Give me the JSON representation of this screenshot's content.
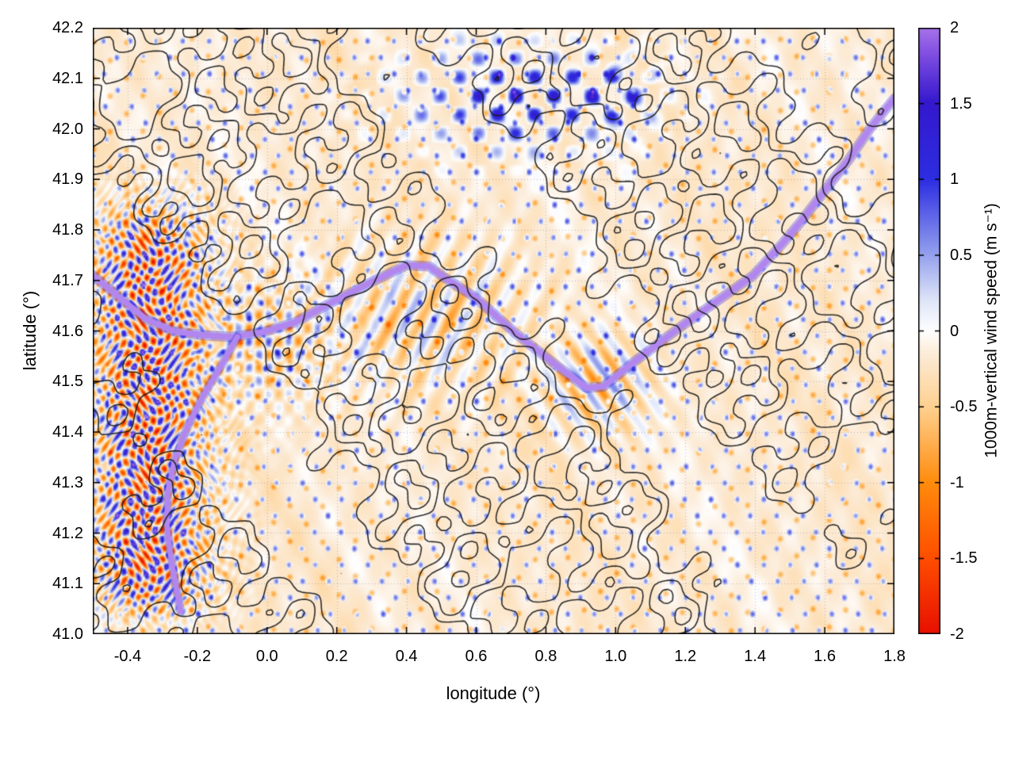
{
  "chart_data": {
    "type": "heatmap",
    "title": "",
    "xlabel": "longitude (°)",
    "ylabel": "latitude (°)",
    "xlim": [
      -0.5,
      1.8
    ],
    "ylim": [
      41.0,
      42.2
    ],
    "grid": true,
    "xticks": [
      {
        "v": -0.4,
        "label": "-0.4"
      },
      {
        "v": -0.2,
        "label": "-0.2"
      },
      {
        "v": 0.0,
        "label": "0.0"
      },
      {
        "v": 0.2,
        "label": "0.2"
      },
      {
        "v": 0.4,
        "label": "0.4"
      },
      {
        "v": 0.6,
        "label": "0.6"
      },
      {
        "v": 0.8,
        "label": "0.8"
      },
      {
        "v": 1.0,
        "label": "1.0"
      },
      {
        "v": 1.2,
        "label": "1.2"
      },
      {
        "v": 1.4,
        "label": "1.4"
      },
      {
        "v": 1.6,
        "label": "1.6"
      },
      {
        "v": 1.8,
        "label": "1.8"
      }
    ],
    "yticks": [
      {
        "v": 41.0,
        "label": "41.0"
      },
      {
        "v": 41.1,
        "label": "41.1"
      },
      {
        "v": 41.2,
        "label": "41.2"
      },
      {
        "v": 41.3,
        "label": "41.3"
      },
      {
        "v": 41.4,
        "label": "41.4"
      },
      {
        "v": 41.5,
        "label": "41.5"
      },
      {
        "v": 41.6,
        "label": "41.6"
      },
      {
        "v": 41.7,
        "label": "41.7"
      },
      {
        "v": 41.8,
        "label": "41.8"
      },
      {
        "v": 41.9,
        "label": "41.9"
      },
      {
        "v": 42.0,
        "label": "42.0"
      },
      {
        "v": 42.1,
        "label": "42.1"
      },
      {
        "v": 42.2,
        "label": "42.2"
      }
    ],
    "colorbar": {
      "label": "1000m-vertical wind speed (m s⁻¹)",
      "range": [
        -2,
        2
      ],
      "ticks": [
        {
          "v": -2,
          "label": "-2"
        },
        {
          "v": -1.5,
          "label": "-1.5"
        },
        {
          "v": -1,
          "label": "-1"
        },
        {
          "v": -0.5,
          "label": "-0.5"
        },
        {
          "v": 0,
          "label": "0"
        },
        {
          "v": 0.5,
          "label": "0.5"
        },
        {
          "v": 1,
          "label": "1"
        },
        {
          "v": 1.5,
          "label": "1.5"
        },
        {
          "v": 2,
          "label": "2"
        }
      ],
      "colormap": [
        {
          "v": -2.0,
          "c": "#e81000"
        },
        {
          "v": -1.5,
          "c": "#ff4e00"
        },
        {
          "v": -1.0,
          "c": "#ff8c0c"
        },
        {
          "v": -0.5,
          "c": "#ffd190"
        },
        {
          "v": -0.15,
          "c": "#fcecd8"
        },
        {
          "v": 0.0,
          "c": "#ffffff"
        },
        {
          "v": 0.2,
          "c": "#dfe6f8"
        },
        {
          "v": 0.5,
          "c": "#96a2ee"
        },
        {
          "v": 1.0,
          "c": "#2d2ee2"
        },
        {
          "v": 1.5,
          "c": "#3418cd"
        },
        {
          "v": 1.8,
          "c": "#7a4ae0"
        },
        {
          "v": 2.0,
          "c": "#a873ea"
        }
      ]
    },
    "overlays": {
      "flight_track": {
        "description": "thick light-purple line (w ≈ +2 m s⁻¹) of measurements along a flight track crossing the domain",
        "core_color": "#b286ef",
        "fringe_color": "#4338e0",
        "main": [
          [
            -0.5,
            41.71
          ],
          [
            -0.43,
            41.67
          ],
          [
            -0.35,
            41.625
          ],
          [
            -0.27,
            41.6
          ],
          [
            -0.19,
            41.592
          ],
          [
            -0.1,
            41.588
          ],
          [
            -0.01,
            41.598
          ],
          [
            0.08,
            41.617
          ],
          [
            0.19,
            41.658
          ],
          [
            0.3,
            41.697
          ],
          [
            0.4,
            41.73
          ],
          [
            0.465,
            41.728
          ],
          [
            0.51,
            41.705
          ],
          [
            0.6,
            41.665
          ],
          [
            0.71,
            41.597
          ],
          [
            0.83,
            41.532
          ],
          [
            0.917,
            41.487
          ],
          [
            0.965,
            41.49
          ],
          [
            1.055,
            41.54
          ],
          [
            1.19,
            41.61
          ],
          [
            1.33,
            41.678
          ],
          [
            1.395,
            41.71
          ],
          [
            1.475,
            41.77
          ],
          [
            1.53,
            41.815
          ],
          [
            1.6,
            41.878
          ],
          [
            1.67,
            41.94
          ],
          [
            1.725,
            41.996
          ],
          [
            1.77,
            42.035
          ],
          [
            1.8,
            42.06
          ]
        ],
        "branch": [
          [
            -0.085,
            41.588
          ],
          [
            -0.13,
            41.533
          ],
          [
            -0.185,
            41.47
          ],
          [
            -0.23,
            41.408
          ],
          [
            -0.265,
            41.345
          ],
          [
            -0.285,
            41.282
          ],
          [
            -0.288,
            41.22
          ],
          [
            -0.277,
            41.157
          ],
          [
            -0.261,
            41.094
          ],
          [
            -0.248,
            41.045
          ]
        ]
      },
      "terrain_contours": {
        "description": "black orography contour lines over the whole domain",
        "color": "#1a1a1a",
        "levels": [
          0.0,
          0.5,
          1.0
        ]
      },
      "grid_color": "#9090b8",
      "features": [
        {
          "name": "mountain-wave train",
          "lon_range": [
            -0.5,
            -0.1
          ],
          "lat_range": [
            41.0,
            41.75
          ],
          "description": "dense alternating updraft (blue/violet) and downdraft (red/orange) cells reaching ±2 m s⁻¹"
        },
        {
          "name": "wave cluster near track",
          "lon_range": [
            -0.15,
            0.15
          ],
          "lat_range": [
            41.45,
            41.7
          ],
          "description": "moderate alternating cells around the western part of the track"
        },
        {
          "name": "northern updraft patches",
          "lon_range": [
            0.4,
            1.1
          ],
          "lat_range": [
            41.95,
            42.15
          ],
          "description": "isolated positive (deep blue) cells up to ~1.5 m s⁻¹"
        },
        {
          "name": "background",
          "description": "weak subsidence ≈ -0.2 m s⁻¹ (pale orange) with faint wave striations"
        }
      ]
    }
  }
}
